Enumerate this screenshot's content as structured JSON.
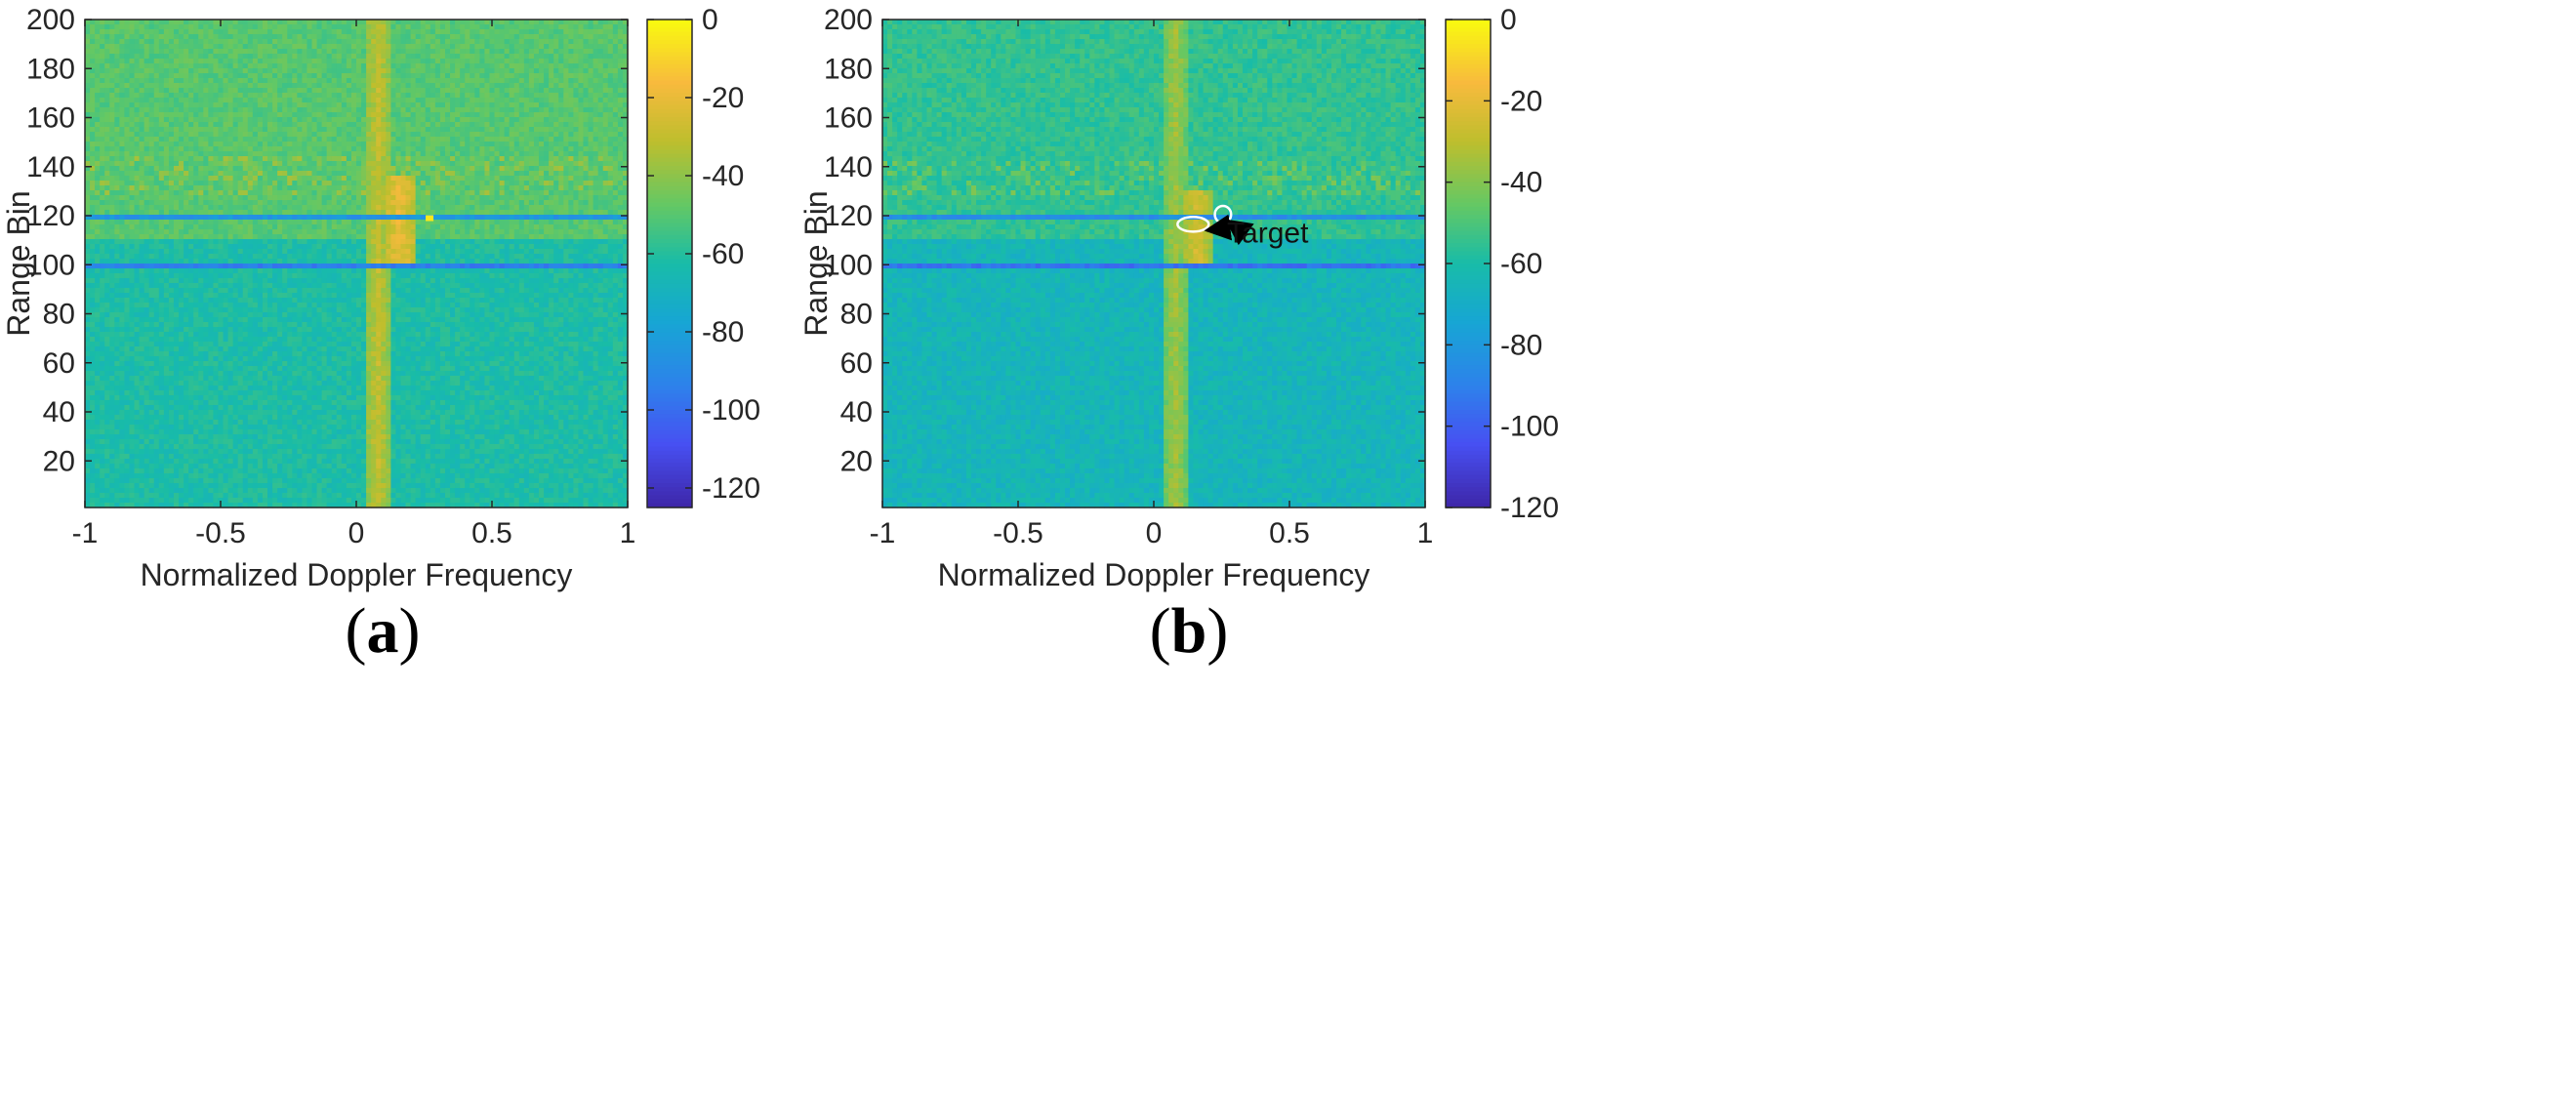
{
  "chart_data": [
    {
      "type": "heatmap",
      "caption": {
        "open": "(",
        "letter": "a",
        "close": ")"
      },
      "xlabel": "Normalized Doppler Frequency",
      "ylabel": "Range Bin",
      "xlim": [
        -1,
        1
      ],
      "ylim": [
        1,
        200
      ],
      "xticks": [
        -1,
        -0.5,
        0,
        0.5,
        1
      ],
      "xtick_labels": [
        "-1",
        "-0.5",
        "0",
        "0.5",
        "1"
      ],
      "yticks": [
        20,
        40,
        60,
        80,
        100,
        120,
        140,
        160,
        180,
        200
      ],
      "ytick_labels": [
        "20",
        "40",
        "60",
        "80",
        "100",
        "120",
        "140",
        "160",
        "180",
        "200"
      ],
      "colorbar": {
        "range": [
          -125,
          0
        ],
        "ticks": [
          0,
          -20,
          -40,
          -60,
          -80,
          -100,
          -120
        ],
        "tick_labels": [
          "0",
          "-20",
          "-40",
          "-60",
          "-80",
          "-100",
          "-120"
        ],
        "colormap": "parula"
      },
      "background_level_db": {
        "upper_region": -50,
        "lower_region": -62
      },
      "features": [
        {
          "kind": "vertical-clutter-ridge",
          "doppler": 0.08,
          "range_bins": [
            1,
            200
          ],
          "level_db": -30
        },
        {
          "kind": "strong-return",
          "doppler": 0.16,
          "range_bins": [
            98,
            136
          ],
          "level_db": -20
        },
        {
          "kind": "horizontal-line-low",
          "range_bin": 100,
          "level_db": -95
        },
        {
          "kind": "horizontal-line-low",
          "range_bin": 119,
          "level_db": -85
        },
        {
          "kind": "horizontal-band-high",
          "range_bins": [
            128,
            145
          ],
          "level_db": -40
        },
        {
          "kind": "point-return",
          "doppler": 0.27,
          "range_bin": 119,
          "level_db": -5
        }
      ]
    },
    {
      "type": "heatmap",
      "caption": {
        "open": "(",
        "letter": "b",
        "close": ")"
      },
      "xlabel": "Normalized Doppler Frequency",
      "ylabel": "Range Bin",
      "xlim": [
        -1,
        1
      ],
      "ylim": [
        1,
        200
      ],
      "xticks": [
        -1,
        -0.5,
        0,
        0.5,
        1
      ],
      "xtick_labels": [
        "-1",
        "-0.5",
        "0",
        "0.5",
        "1"
      ],
      "yticks": [
        20,
        40,
        60,
        80,
        100,
        120,
        140,
        160,
        180,
        200
      ],
      "ytick_labels": [
        "20",
        "40",
        "60",
        "80",
        "100",
        "120",
        "140",
        "160",
        "180",
        "200"
      ],
      "colorbar": {
        "range": [
          -120,
          0
        ],
        "ticks": [
          0,
          -20,
          -40,
          -60,
          -80,
          -100,
          -120
        ],
        "tick_labels": [
          "0",
          "-20",
          "-40",
          "-60",
          "-80",
          "-100",
          "-120"
        ],
        "colormap": "parula"
      },
      "background_level_db": {
        "upper_region": -55,
        "lower_region": -65
      },
      "features": [
        {
          "kind": "vertical-clutter-ridge",
          "doppler": 0.08,
          "range_bins": [
            1,
            200
          ],
          "level_db": -35
        },
        {
          "kind": "strong-return",
          "doppler": 0.16,
          "range_bins": [
            100,
            130
          ],
          "level_db": -25
        },
        {
          "kind": "horizontal-line-low",
          "range_bin": 100,
          "level_db": -95
        },
        {
          "kind": "horizontal-line-low",
          "range_bin": 119,
          "level_db": -85
        },
        {
          "kind": "horizontal-band-high",
          "range_bins": [
            128,
            142
          ],
          "level_db": -45
        }
      ],
      "annotations": [
        {
          "text": "Target",
          "text_at": {
            "doppler": 0.27,
            "range_bin": 113
          },
          "markers": [
            {
              "shape": "ellipse",
              "center": {
                "doppler": 0.145,
                "range_bin": 116.5
              },
              "size_doppler": 0.115,
              "size_range_bins": 6,
              "color": "#ffffff"
            },
            {
              "shape": "ellipse",
              "center": {
                "doppler": 0.255,
                "range_bin": 120.5
              },
              "size_doppler": 0.06,
              "size_range_bins": 7,
              "color": "#ffffff"
            }
          ],
          "arrows": [
            {
              "from": {
                "doppler": 0.265,
                "range_bin": 115
              },
              "to": {
                "doppler": 0.195,
                "range_bin": 114
              }
            },
            {
              "from": {
                "doppler": 0.32,
                "range_bin": 114
              },
              "to": {
                "doppler": 0.27,
                "range_bin": 118
              }
            }
          ]
        }
      ]
    }
  ]
}
